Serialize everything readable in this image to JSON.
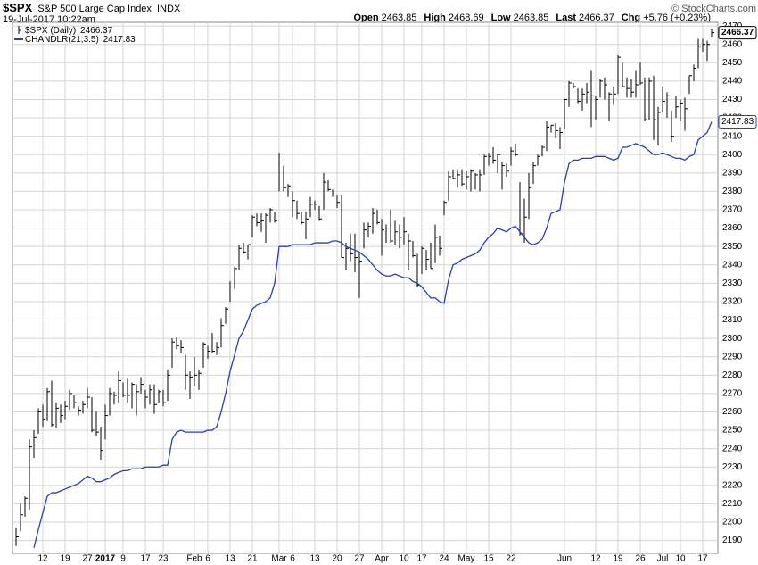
{
  "chart_data": {
    "type": "ohlc",
    "symbol": "$SPX",
    "title": "S&P 500 Large Cap Index",
    "exchange": "INDX",
    "date": "19-Jul-2017 10:22am",
    "quote": [
      {
        "label": "Open",
        "value": 2463.85
      },
      {
        "label": "High",
        "value": 2468.69
      },
      {
        "label": "Low",
        "value": 2463.85
      },
      {
        "label": "Last",
        "value": 2466.37
      },
      {
        "label": "Chg",
        "value": "+5.76 (+0.23%)"
      }
    ],
    "credit": "© StockCharts.com",
    "categories": [
      null,
      null,
      null,
      null,
      null,
      null,
      "12",
      null,
      null,
      null,
      null,
      "19",
      null,
      null,
      null,
      null,
      "27",
      null,
      null,
      null,
      "2017",
      null,
      null,
      null,
      "9",
      null,
      null,
      null,
      null,
      "17",
      null,
      null,
      null,
      "23",
      null,
      null,
      null,
      null,
      null,
      null,
      "Feb",
      null,
      null,
      "6",
      null,
      null,
      null,
      null,
      "13",
      null,
      null,
      null,
      null,
      "21",
      null,
      null,
      null,
      null,
      null,
      "Mar",
      null,
      null,
      "6",
      null,
      null,
      null,
      null,
      "13",
      null,
      null,
      null,
      null,
      "20",
      null,
      null,
      null,
      null,
      "27",
      null,
      null,
      null,
      null,
      "Apr",
      null,
      null,
      null,
      null,
      "10",
      null,
      null,
      null,
      "17",
      null,
      null,
      null,
      null,
      "24",
      null,
      null,
      null,
      null,
      "May",
      null,
      null,
      null,
      null,
      "15",
      null,
      null,
      null,
      null,
      "22",
      null,
      null,
      null,
      null,
      null,
      null,
      null,
      null,
      null,
      null,
      null,
      "Jun",
      null,
      null,
      null,
      null,
      null,
      null,
      "12",
      null,
      null,
      null,
      null,
      "19",
      null,
      null,
      null,
      null,
      "26",
      null,
      null,
      null,
      null,
      "Jul",
      null,
      null,
      null,
      "10",
      null,
      null,
      null,
      null,
      "17",
      null,
      null
    ],
    "series": [
      {
        "name": "$SPX (Daily)",
        "color": "#000000",
        "values": [
          2192,
          2204,
          2213,
          2241,
          2246,
          2260,
          2256,
          2271,
          2253,
          2262,
          2258,
          2263,
          2270,
          2265,
          2261,
          2264,
          2268,
          2250,
          2249,
          2239,
          2258,
          2270,
          2269,
          2277,
          2269,
          2269,
          2275,
          2271,
          2275,
          2268,
          2272,
          2264,
          2271,
          2265,
          2280,
          2298,
          2296,
          2295,
          2280,
          2279,
          2280,
          2281,
          2297,
          2293,
          2293,
          2295,
          2307,
          2316,
          2328,
          2338,
          2349,
          2347,
          2351,
          2366,
          2363,
          2364,
          2367,
          2370,
          2364,
          2396,
          2382,
          2383,
          2375,
          2368,
          2363,
          2365,
          2373,
          2373,
          2365,
          2385,
          2381,
          2378,
          2374,
          2344,
          2349,
          2346,
          2344,
          2342,
          2359,
          2361,
          2368,
          2363,
          2359,
          2360,
          2353,
          2358,
          2355,
          2358,
          2353,
          2345,
          2329,
          2349,
          2343,
          2338,
          2355,
          2349,
          2374,
          2388,
          2387,
          2389,
          2384,
          2388,
          2391,
          2389,
          2389,
          2399,
          2399,
          2397,
          2400,
          2394,
          2391,
          2402,
          2400,
          2357,
          2366,
          2382,
          2394,
          2399,
          2404,
          2415,
          2416,
          2413,
          2412,
          2430,
          2439,
          2437,
          2429,
          2433,
          2434,
          2432,
          2430,
          2440,
          2438,
          2433,
          2433,
          2453,
          2437,
          2436,
          2434,
          2438,
          2439,
          2419,
          2440,
          2419,
          2423,
          2429,
          2432,
          2410,
          2426,
          2428,
          2425,
          2443,
          2447,
          2459,
          2460,
          2460,
          2466.37
        ],
        "highs": [
          2197,
          2210,
          2214,
          2245,
          2250,
          2262,
          2264,
          2273,
          2277,
          2265,
          2264,
          2266,
          2272,
          2269,
          2263,
          2266,
          2273,
          2268,
          2260,
          2252,
          2264,
          2273,
          2271,
          2282,
          2276,
          2278,
          2276,
          2275,
          2279,
          2272,
          2275,
          2275,
          2272,
          2272,
          2283,
          2300,
          2301,
          2299,
          2291,
          2282,
          2290,
          2283,
          2298,
          2296,
          2303,
          2298,
          2311,
          2317,
          2331,
          2339,
          2351,
          2352,
          2351,
          2367,
          2368,
          2368,
          2368,
          2371,
          2369,
          2401,
          2394,
          2384,
          2380,
          2375,
          2369,
          2369,
          2377,
          2375,
          2372,
          2390,
          2386,
          2381,
          2378,
          2378,
          2352,
          2357,
          2357,
          2347,
          2363,
          2363,
          2371,
          2370,
          2365,
          2362,
          2370,
          2364,
          2362,
          2366,
          2357,
          2353,
          2346,
          2350,
          2348,
          2352,
          2362,
          2356,
          2375,
          2391,
          2392,
          2392,
          2392,
          2391,
          2392,
          2390,
          2392,
          2400,
          2401,
          2404,
          2400,
          2396,
          2395,
          2404,
          2406,
          2385,
          2376,
          2390,
          2396,
          2400,
          2405,
          2418,
          2416,
          2417,
          2415,
          2430,
          2440,
          2439,
          2436,
          2436,
          2439,
          2446,
          2432,
          2441,
          2442,
          2434,
          2437,
          2454,
          2450,
          2442,
          2441,
          2446,
          2450,
          2442,
          2442,
          2443,
          2426,
          2437,
          2434,
          2424,
          2432,
          2430,
          2431,
          2443,
          2449,
          2463,
          2463,
          2462,
          2468.69
        ],
        "lows": [
          2187,
          2195,
          2203,
          2207,
          2235,
          2248,
          2252,
          2255,
          2252,
          2251,
          2254,
          2256,
          2261,
          2262,
          2258,
          2259,
          2262,
          2249,
          2247,
          2234,
          2245,
          2258,
          2264,
          2265,
          2268,
          2265,
          2262,
          2258,
          2270,
          2262,
          2264,
          2259,
          2265,
          2263,
          2266,
          2284,
          2294,
          2292,
          2272,
          2267,
          2274,
          2272,
          2284,
          2289,
          2292,
          2291,
          2295,
          2308,
          2320,
          2327,
          2337,
          2346,
          2343,
          2355,
          2361,
          2358,
          2352,
          2363,
          2363,
          2380,
          2380,
          2377,
          2366,
          2365,
          2362,
          2354,
          2366,
          2370,
          2364,
          2370,
          2380,
          2377,
          2371,
          2344,
          2337,
          2342,
          2336,
          2322,
          2349,
          2355,
          2357,
          2362,
          2345,
          2352,
          2352,
          2351,
          2349,
          2351,
          2337,
          2344,
          2328,
          2335,
          2337,
          2338,
          2341,
          2345,
          2367,
          2375,
          2387,
          2382,
          2383,
          2381,
          2380,
          2381,
          2380,
          2389,
          2394,
          2395,
          2390,
          2381,
          2388,
          2394,
          2399,
          2356,
          2352,
          2365,
          2384,
          2394,
          2399,
          2402,
          2412,
          2409,
          2403,
          2414,
          2426,
          2436,
          2428,
          2424,
          2428,
          2415,
          2419,
          2431,
          2430,
          2418,
          2427,
          2433,
          2437,
          2431,
          2431,
          2431,
          2438,
          2418,
          2419,
          2408,
          2405,
          2423,
          2420,
          2407,
          2420,
          2418,
          2413,
          2433,
          2440,
          2447,
          2456,
          2451,
          2463.85
        ]
      },
      {
        "name": "CHANDLR(21,3.5)",
        "color": "#2b3fae",
        "values": [
          null,
          null,
          null,
          null,
          2186,
          2196,
          2205,
          2214,
          2216,
          2216,
          2217,
          2218,
          2219,
          2220,
          2221,
          2223,
          2225,
          2224,
          2222,
          2222,
          2223,
          2224,
          2226,
          2227,
          2228,
          2228,
          2229,
          2229,
          2229,
          2230,
          2230,
          2230,
          2230,
          2231,
          2231,
          2245,
          2249,
          2250,
          2249,
          2249,
          2249,
          2249,
          2249,
          2250,
          2250,
          2252,
          2260,
          2270,
          2282,
          2291,
          2300,
          2304,
          2310,
          2316,
          2318,
          2319,
          2320,
          2322,
          2330,
          2350,
          2350,
          2350,
          2351,
          2351,
          2351,
          2351,
          2351,
          2352,
          2352,
          2352,
          2352,
          2353,
          2353,
          2352,
          2350,
          2349,
          2348,
          2347,
          2345,
          2343,
          2340,
          2337,
          2335,
          2334,
          2334,
          2335,
          2334,
          2333,
          2333,
          2331,
          2330,
          2328,
          2325,
          2322,
          2322,
          2320,
          2319,
          2332,
          2340,
          2341,
          2343,
          2344,
          2345,
          2346,
          2348,
          2352,
          2355,
          2357,
          2360,
          2359,
          2358,
          2360,
          2361,
          2358,
          2355,
          2352,
          2351,
          2352,
          2354,
          2360,
          2368,
          2369,
          2370,
          2385,
          2395,
          2397,
          2397,
          2398,
          2398,
          2398,
          2399,
          2399,
          2399,
          2398,
          2397,
          2398,
          2404,
          2404,
          2405,
          2406,
          2405,
          2404,
          2402,
          2400,
          2400,
          2401,
          2400,
          2399,
          2398,
          2398,
          2397,
          2399,
          2400,
          2408,
          2410,
          2412,
          2417.83
        ]
      }
    ],
    "ylim": [
      2183,
      2472
    ],
    "yticks": [
      2190,
      2200,
      2210,
      2220,
      2230,
      2240,
      2250,
      2260,
      2270,
      2280,
      2290,
      2300,
      2310,
      2320,
      2330,
      2340,
      2350,
      2360,
      2370,
      2380,
      2390,
      2400,
      2410,
      2420,
      2430,
      2440,
      2450,
      2460,
      2470
    ],
    "grid": true
  }
}
